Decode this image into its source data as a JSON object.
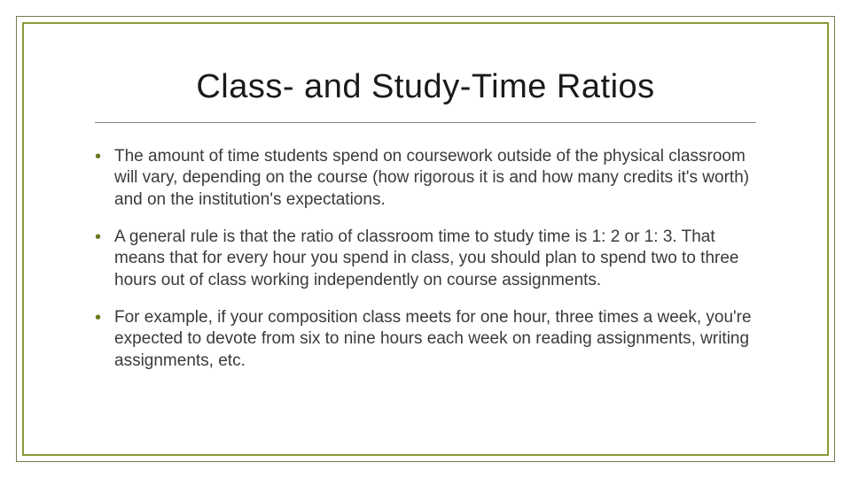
{
  "slide": {
    "title": "Class- and Study-Time Ratios",
    "bullets": [
      "The amount of time students spend on coursework outside of the physical classroom will vary, depending on the course (how rigorous it is and how many credits it's worth) and on the institution's expectations.",
      "A general rule is that the ratio of classroom time to study time is 1: 2 or 1: 3. That means that for every hour you spend in class, you should plan to spend two to three hours out of class working independently on course assignments.",
      "For example, if your composition class meets for one hour, three times a week, you're expected to devote from six to nine hours each week on reading assignments, writing assignments, etc."
    ]
  },
  "style": {
    "background_color": "#ffffff",
    "outer_border_color": "#7a7a50",
    "inner_border_color": "#8a9a3a",
    "title_color": "#1a1a1a",
    "title_fontsize": 38,
    "divider_color": "#888888",
    "bullet_color": "#6b7a1f",
    "body_text_color": "#3a3a3a",
    "body_fontsize": 19,
    "font_family": "Arial, Helvetica, sans-serif"
  }
}
